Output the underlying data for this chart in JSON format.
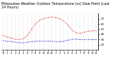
{
  "title": "Milwaukee Weather Outdoor Temperature (vs) Dew Point (Last 24 Hours)",
  "title_fontsize": 3.5,
  "background_color": "#ffffff",
  "grid_color": "#888888",
  "x_values": [
    0,
    1,
    2,
    3,
    4,
    5,
    6,
    7,
    8,
    9,
    10,
    11,
    12,
    13,
    14,
    15,
    16,
    17,
    18,
    19,
    20,
    21,
    22,
    23
  ],
  "temp_values": [
    38,
    35,
    33,
    31,
    30,
    32,
    38,
    50,
    60,
    67,
    70,
    72,
    73,
    72,
    70,
    65,
    58,
    48,
    43,
    42,
    44,
    46,
    47,
    47
  ],
  "dew_values": [
    28,
    27,
    26,
    25,
    24,
    24,
    25,
    26,
    27,
    27,
    27,
    27,
    27,
    26,
    26,
    27,
    29,
    30,
    31,
    30,
    30,
    30,
    30,
    30
  ],
  "temp_color": "#dd0000",
  "dew_color": "#0000cc",
  "ylim": [
    10,
    80
  ],
  "yticks": [
    20,
    30,
    40,
    50,
    60,
    70
  ],
  "ytick_labels": [
    "20",
    "30",
    "40",
    "50",
    "60",
    "70"
  ],
  "xtick_labels": [
    "12",
    "1",
    "2",
    "3",
    "4",
    "5",
    "6",
    "7",
    "8",
    "9",
    "10",
    "11",
    "12",
    "1",
    "2",
    "3",
    "4",
    "5",
    "6",
    "7",
    "8",
    "9",
    "10",
    "11"
  ],
  "tick_fontsize": 2.8,
  "xlabel_fontsize": 2.5,
  "line_width": 0.7,
  "marker_size": 0.8,
  "figsize": [
    1.6,
    0.87
  ],
  "dpi": 100
}
